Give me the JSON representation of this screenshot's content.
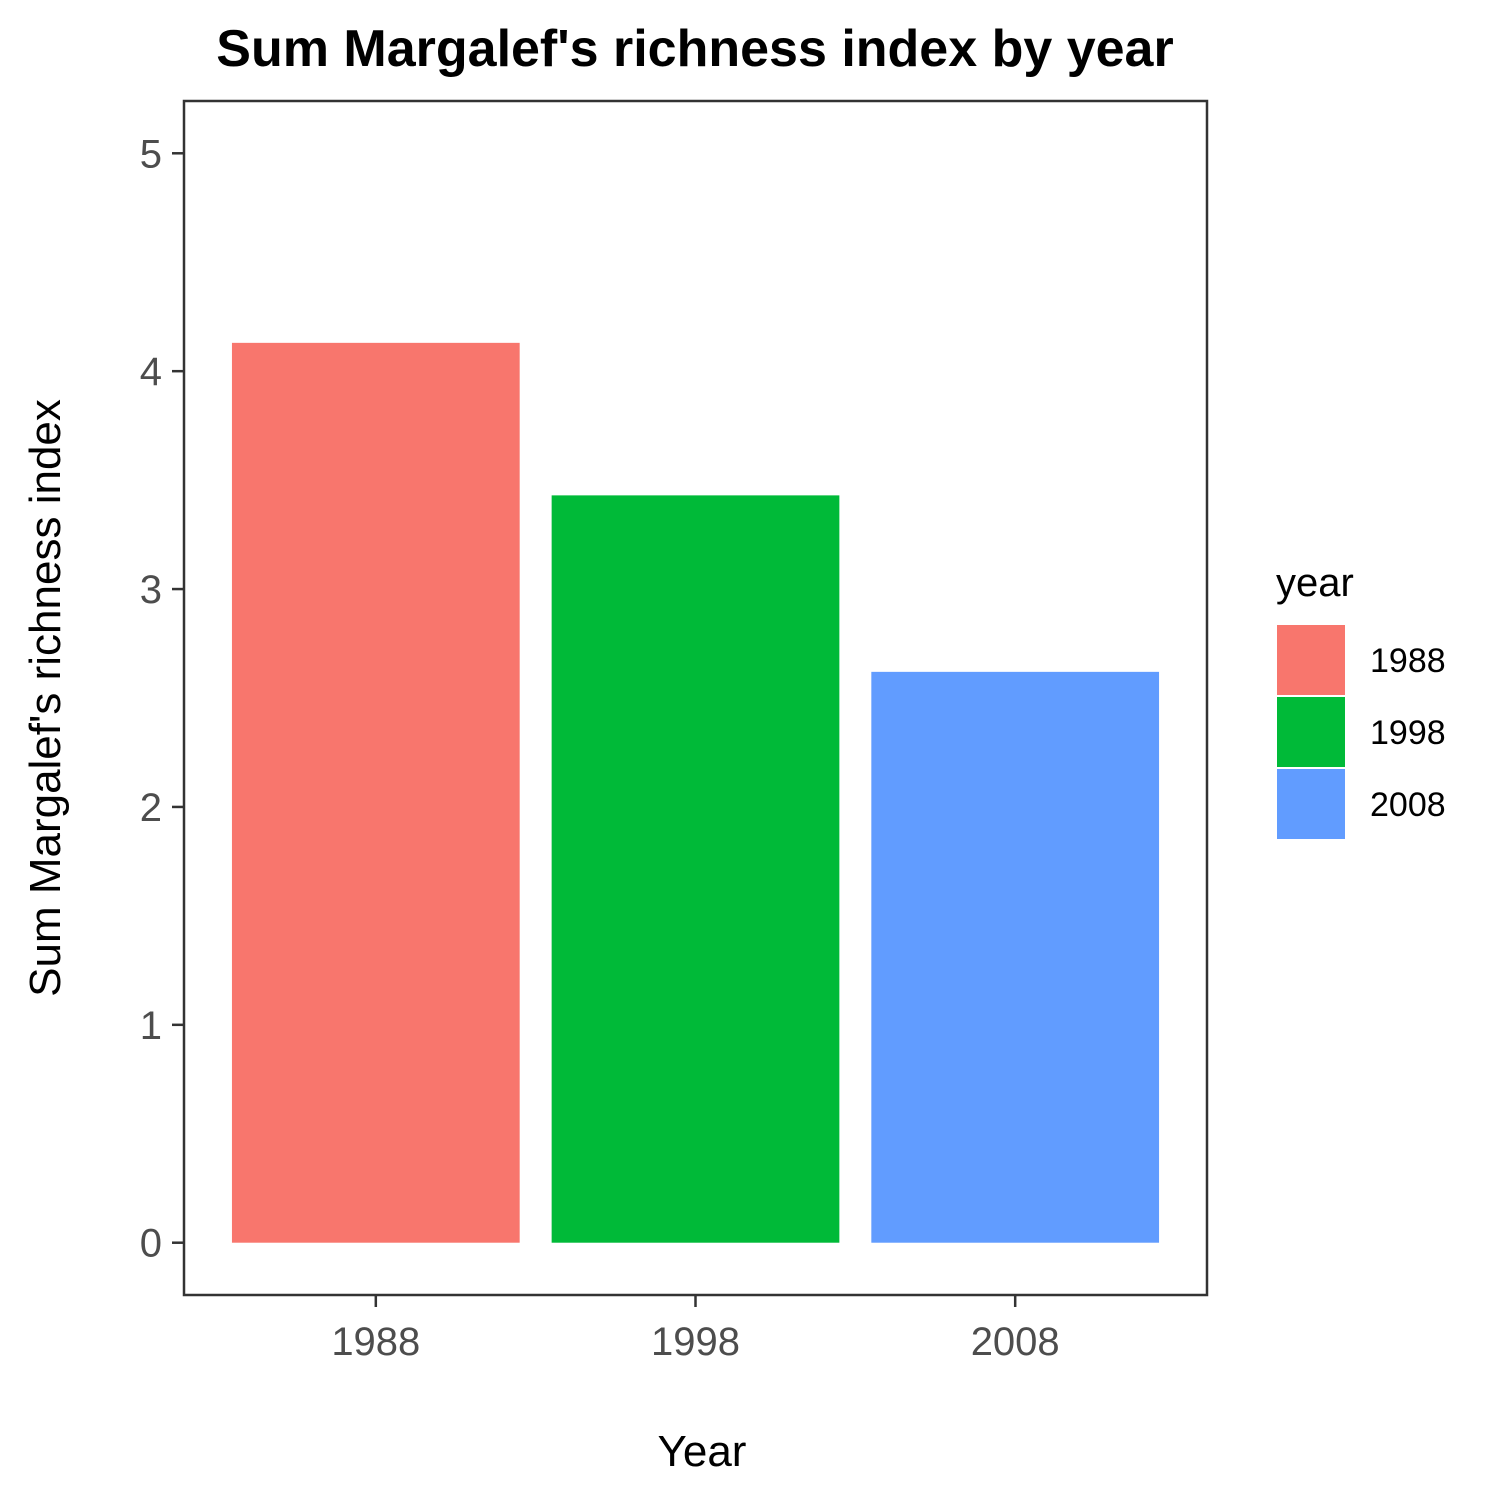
{
  "chart_data": {
    "type": "bar",
    "title": "Sum Margalef's richness index by year",
    "xlabel": "Year",
    "ylabel": "Sum Margalef's richness index",
    "categories": [
      "1988",
      "1998",
      "2008"
    ],
    "values": [
      4.13,
      3.43,
      2.62
    ],
    "colors": [
      "#F8766D",
      "#00BA38",
      "#619CFF"
    ],
    "ylim": [
      -0.24,
      5.24
    ],
    "yticks": [
      0,
      1,
      2,
      3,
      4,
      5
    ],
    "grid": false,
    "legend": {
      "title": "year",
      "position": "right",
      "entries": [
        "1988",
        "1998",
        "2008"
      ]
    }
  }
}
